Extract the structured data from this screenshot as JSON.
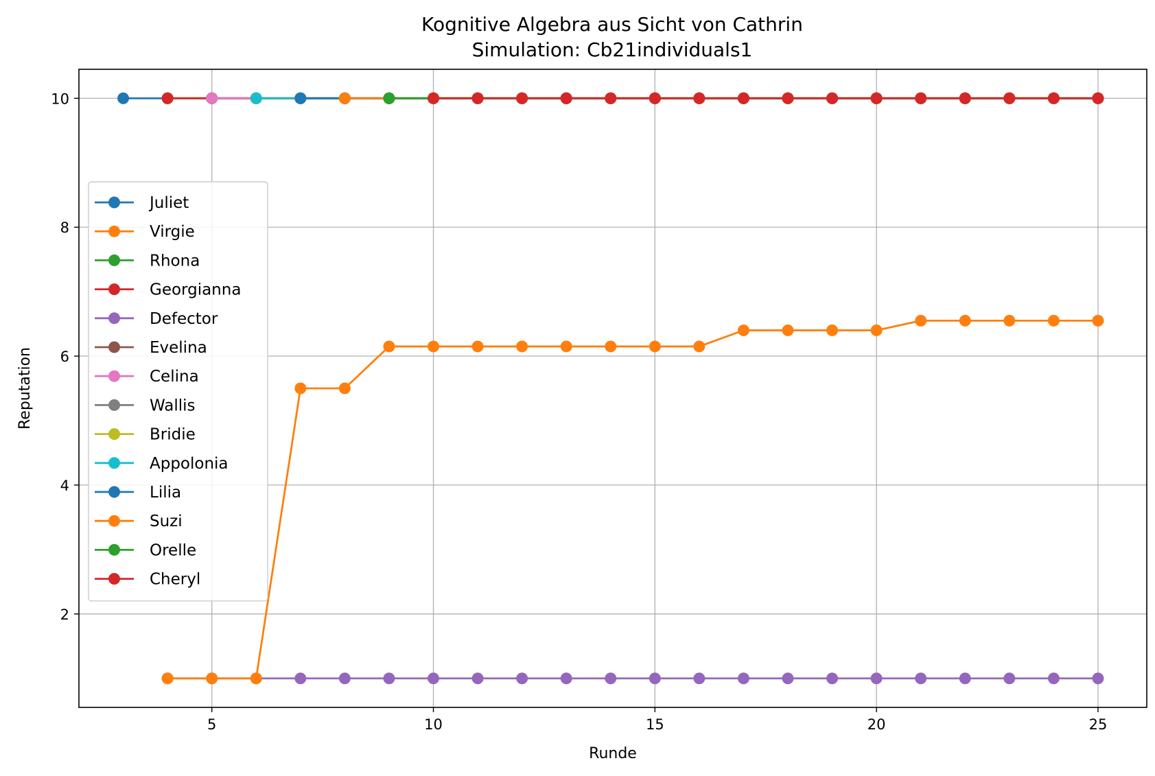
{
  "chart_data": {
    "type": "line",
    "title": "Kognitive Algebra aus Sicht von Cathrin",
    "subtitle": "Simulation: Cb21individuals1",
    "xlabel": "Runde",
    "ylabel": "Reputation",
    "xlim": [
      2,
      26.1
    ],
    "ylim": [
      0.55,
      10.45
    ],
    "xticks": [
      5,
      10,
      15,
      20,
      25
    ],
    "yticks": [
      2,
      4,
      6,
      8,
      10
    ],
    "grid": true,
    "legend_position": "center-left",
    "series": [
      {
        "name": "Juliet",
        "color": "#1f77b4",
        "x": [
          3,
          4,
          5,
          6,
          7,
          8,
          9,
          10,
          11,
          12,
          13,
          14,
          15,
          16,
          17,
          18,
          19,
          20,
          21,
          22,
          23,
          24,
          25
        ],
        "y": [
          10,
          10,
          10,
          10,
          10,
          10,
          10,
          10,
          10,
          10,
          10,
          10,
          10,
          10,
          10,
          10,
          10,
          10,
          10,
          10,
          10,
          10,
          10
        ]
      },
      {
        "name": "Virgie",
        "color": "#ff7f0e",
        "x": [
          4,
          5,
          6,
          7,
          8,
          9,
          10,
          11,
          12,
          13,
          14,
          15,
          16,
          17,
          18,
          19,
          20,
          21,
          22,
          23,
          24,
          25
        ],
        "y": [
          10,
          10,
          10,
          10,
          10,
          10,
          10,
          10,
          10,
          10,
          10,
          10,
          10,
          10,
          10,
          10,
          10,
          10,
          10,
          10,
          10,
          10
        ]
      },
      {
        "name": "Rhona",
        "color": "#2ca02c",
        "x": [
          4,
          5,
          6,
          7,
          8,
          9,
          10,
          11,
          12,
          13,
          14,
          15,
          16,
          17,
          18,
          19,
          20,
          21,
          22,
          23,
          24,
          25
        ],
        "y": [
          10,
          10,
          10,
          10,
          10,
          10,
          10,
          10,
          10,
          10,
          10,
          10,
          10,
          10,
          10,
          10,
          10,
          10,
          10,
          10,
          10,
          10
        ]
      },
      {
        "name": "Georgianna",
        "color": "#d62728",
        "x": [
          4,
          5,
          6,
          7,
          8,
          9,
          10,
          11,
          12,
          13,
          14,
          15,
          16,
          17,
          18,
          19,
          20,
          21,
          22,
          23,
          24,
          25
        ],
        "y": [
          10,
          10,
          10,
          10,
          10,
          10,
          10,
          10,
          10,
          10,
          10,
          10,
          10,
          10,
          10,
          10,
          10,
          10,
          10,
          10,
          10,
          10
        ]
      },
      {
        "name": "Defector",
        "color": "#9467bd",
        "x": [
          4,
          5,
          6,
          7,
          8,
          9,
          10,
          11,
          12,
          13,
          14,
          15,
          16,
          17,
          18,
          19,
          20,
          21,
          22,
          23,
          24,
          25
        ],
        "y": [
          1,
          1,
          1,
          1,
          1,
          1,
          1,
          1,
          1,
          1,
          1,
          1,
          1,
          1,
          1,
          1,
          1,
          1,
          1,
          1,
          1,
          1
        ]
      },
      {
        "name": "Evelina",
        "color": "#8c564b",
        "x": [
          5,
          6,
          7,
          8,
          9,
          10,
          11,
          12,
          13,
          14,
          15,
          16,
          17,
          18,
          19,
          20,
          21,
          22,
          23,
          24,
          25
        ],
        "y": [
          10,
          10,
          10,
          10,
          10,
          10,
          10,
          10,
          10,
          10,
          10,
          10,
          10,
          10,
          10,
          10,
          10,
          10,
          10,
          10,
          10
        ]
      },
      {
        "name": "Celina",
        "color": "#e377c2",
        "x": [
          5,
          6,
          7,
          8,
          9,
          10,
          11,
          12,
          13,
          14,
          15,
          16,
          17,
          18,
          19,
          20,
          21,
          22,
          23,
          24,
          25
        ],
        "y": [
          10,
          10,
          10,
          10,
          10,
          10,
          10,
          10,
          10,
          10,
          10,
          10,
          10,
          10,
          10,
          10,
          10,
          10,
          10,
          10,
          10
        ]
      },
      {
        "name": "Wallis",
        "color": "#7f7f7f",
        "x": [
          6,
          7,
          8,
          9,
          10,
          11,
          12,
          13,
          14,
          15,
          16,
          17,
          18,
          19,
          20,
          21,
          22,
          23,
          24,
          25
        ],
        "y": [
          10,
          10,
          10,
          10,
          10,
          10,
          10,
          10,
          10,
          10,
          10,
          10,
          10,
          10,
          10,
          10,
          10,
          10,
          10,
          10
        ]
      },
      {
        "name": "Bridie",
        "color": "#bcbd22",
        "x": [
          6,
          7,
          8,
          9,
          10,
          11,
          12,
          13,
          14,
          15,
          16,
          17,
          18,
          19,
          20,
          21,
          22,
          23,
          24,
          25
        ],
        "y": [
          10,
          10,
          10,
          10,
          10,
          10,
          10,
          10,
          10,
          10,
          10,
          10,
          10,
          10,
          10,
          10,
          10,
          10,
          10,
          10
        ]
      },
      {
        "name": "Appolonia",
        "color": "#17becf",
        "x": [
          6,
          7,
          8,
          9,
          10,
          11,
          12,
          13,
          14,
          15,
          16,
          17,
          18,
          19,
          20,
          21,
          22,
          23,
          24,
          25
        ],
        "y": [
          10,
          10,
          10,
          10,
          10,
          10,
          10,
          10,
          10,
          10,
          10,
          10,
          10,
          10,
          10,
          10,
          10,
          10,
          10,
          10
        ]
      },
      {
        "name": "Lilia",
        "color": "#1f77b4",
        "x": [
          7,
          8,
          9,
          10,
          11,
          12,
          13,
          14,
          15,
          16,
          17,
          18,
          19,
          20,
          21,
          22,
          23,
          24,
          25
        ],
        "y": [
          10,
          10,
          10,
          10,
          10,
          10,
          10,
          10,
          10,
          10,
          10,
          10,
          10,
          10,
          10,
          10,
          10,
          10,
          10
        ]
      },
      {
        "name": "Suzi",
        "color": "#ff7f0e",
        "x": [
          8,
          9,
          10,
          11,
          12,
          13,
          14,
          15,
          16,
          17,
          18,
          19,
          20,
          21,
          22,
          23,
          24,
          25
        ],
        "y": [
          10,
          10,
          10,
          10,
          10,
          10,
          10,
          10,
          10,
          10,
          10,
          10,
          10,
          10,
          10,
          10,
          10,
          10
        ]
      },
      {
        "name": "Orelle",
        "color": "#2ca02c",
        "x": [
          9,
          10,
          11,
          12,
          13,
          14,
          15,
          16,
          17,
          18,
          19,
          20,
          21,
          22,
          23,
          24,
          25
        ],
        "y": [
          10,
          10,
          10,
          10,
          10,
          10,
          10,
          10,
          10,
          10,
          10,
          10,
          10,
          10,
          10,
          10,
          10
        ]
      },
      {
        "name": "Cheryl",
        "color": "#d62728",
        "x": [
          10,
          11,
          12,
          13,
          14,
          15,
          16,
          17,
          18,
          19,
          20,
          21,
          22,
          23,
          24,
          25
        ],
        "y": [
          10,
          10,
          10,
          10,
          10,
          10,
          10,
          10,
          10,
          10,
          10,
          10,
          10,
          10,
          10,
          10
        ]
      },
      {
        "name": "",
        "color": "#ff7f0e",
        "x": [
          4,
          5,
          6,
          7,
          8,
          9,
          10,
          11,
          12,
          13,
          14,
          15,
          16,
          17,
          18,
          19,
          20,
          21,
          22,
          23,
          24,
          25
        ],
        "y": [
          1,
          1,
          1,
          5.5,
          5.5,
          6.15,
          6.15,
          6.15,
          6.15,
          6.15,
          6.15,
          6.15,
          6.15,
          6.4,
          6.4,
          6.4,
          6.4,
          6.55,
          6.55,
          6.55,
          6.55,
          6.55
        ]
      }
    ]
  }
}
